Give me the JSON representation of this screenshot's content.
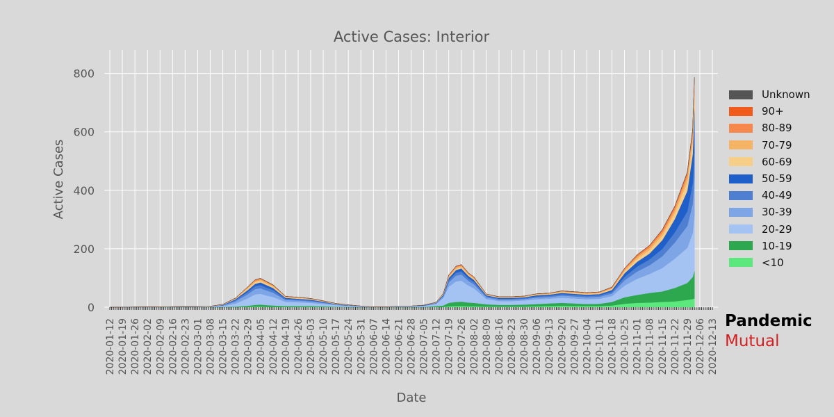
{
  "chart_data": {
    "type": "area",
    "stacked": true,
    "title": "Active Cases: Interior",
    "xlabel": "Date",
    "ylabel": "Active Cases",
    "ylim": [
      0,
      880
    ],
    "yticks": [
      0,
      200,
      400,
      600,
      800
    ],
    "grid": true,
    "legend_position": "right",
    "xticks": [
      "2020-01-12",
      "2020-01-19",
      "2020-01-26",
      "2020-02-02",
      "2020-02-09",
      "2020-02-16",
      "2020-02-23",
      "2020-03-01",
      "2020-03-08",
      "2020-03-15",
      "2020-03-22",
      "2020-03-29",
      "2020-04-05",
      "2020-04-12",
      "2020-04-19",
      "2020-04-26",
      "2020-05-03",
      "2020-05-10",
      "2020-05-17",
      "2020-05-24",
      "2020-05-31",
      "2020-06-07",
      "2020-06-14",
      "2020-06-21",
      "2020-06-28",
      "2020-07-05",
      "2020-07-12",
      "2020-07-19",
      "2020-07-26",
      "2020-08-02",
      "2020-08-09",
      "2020-08-16",
      "2020-08-23",
      "2020-08-30",
      "2020-09-06",
      "2020-09-13",
      "2020-09-20",
      "2020-09-27",
      "2020-10-04",
      "2020-10-11",
      "2020-10-18",
      "2020-10-25",
      "2020-11-01",
      "2020-11-08",
      "2020-11-15",
      "2020-11-22",
      "2020-11-29",
      "2020-12-06",
      "2020-12-13"
    ],
    "x": [
      "2020-01-12",
      "2020-03-08",
      "2020-03-15",
      "2020-03-22",
      "2020-03-29",
      "2020-04-02",
      "2020-04-05",
      "2020-04-09",
      "2020-04-12",
      "2020-04-19",
      "2020-04-26",
      "2020-05-03",
      "2020-05-10",
      "2020-05-17",
      "2020-05-24",
      "2020-05-31",
      "2020-06-07",
      "2020-06-14",
      "2020-06-21",
      "2020-06-28",
      "2020-07-05",
      "2020-07-12",
      "2020-07-16",
      "2020-07-19",
      "2020-07-23",
      "2020-07-26",
      "2020-07-30",
      "2020-08-02",
      "2020-08-09",
      "2020-08-16",
      "2020-08-23",
      "2020-08-30",
      "2020-09-06",
      "2020-09-13",
      "2020-09-20",
      "2020-09-27",
      "2020-10-04",
      "2020-10-11",
      "2020-10-18",
      "2020-10-25",
      "2020-11-01",
      "2020-11-08",
      "2020-11-15",
      "2020-11-22",
      "2020-11-29",
      "2020-12-02",
      "2020-12-03"
    ],
    "series": [
      {
        "name": "<10",
        "color": "#5de87e",
        "values": [
          0,
          0,
          0,
          0,
          1,
          2,
          2,
          1,
          1,
          1,
          1,
          1,
          1,
          1,
          0,
          0,
          0,
          0,
          0,
          0,
          0,
          1,
          1,
          3,
          4,
          4,
          3,
          3,
          2,
          2,
          2,
          2,
          3,
          4,
          5,
          4,
          4,
          4,
          6,
          12,
          15,
          16,
          18,
          20,
          25,
          28,
          30
        ]
      },
      {
        "name": "10-19",
        "color": "#2ea84e",
        "values": [
          0,
          0,
          1,
          2,
          4,
          6,
          7,
          6,
          5,
          3,
          3,
          3,
          2,
          1,
          1,
          1,
          0,
          0,
          1,
          1,
          1,
          3,
          5,
          12,
          14,
          15,
          13,
          12,
          8,
          6,
          6,
          7,
          8,
          9,
          10,
          9,
          7,
          8,
          12,
          22,
          27,
          33,
          36,
          46,
          58,
          75,
          95
        ]
      },
      {
        "name": "20-29",
        "color": "#a4c3f3",
        "values": [
          0,
          1,
          3,
          10,
          26,
          36,
          37,
          32,
          29,
          14,
          13,
          11,
          8,
          5,
          3,
          2,
          1,
          1,
          2,
          2,
          3,
          7,
          26,
          55,
          70,
          72,
          58,
          50,
          18,
          13,
          13,
          14,
          16,
          16,
          17,
          17,
          16,
          17,
          20,
          40,
          55,
          65,
          80,
          100,
          120,
          150,
          190
        ]
      },
      {
        "name": "30-39",
        "color": "#7ea5e6",
        "values": [
          0,
          1,
          2,
          8,
          14,
          18,
          19,
          17,
          15,
          7,
          6,
          5,
          4,
          2,
          1,
          1,
          0,
          0,
          1,
          1,
          1,
          2,
          5,
          15,
          20,
          21,
          16,
          14,
          6,
          5,
          5,
          5,
          6,
          6,
          8,
          7,
          7,
          7,
          9,
          18,
          25,
          30,
          40,
          55,
          75,
          100,
          130
        ]
      },
      {
        "name": "40-49",
        "color": "#4e7fd0",
        "values": [
          0,
          0,
          1,
          4,
          8,
          10,
          11,
          10,
          9,
          4,
          3,
          3,
          2,
          1,
          1,
          0,
          0,
          0,
          0,
          0,
          1,
          1,
          3,
          8,
          10,
          11,
          9,
          8,
          4,
          3,
          3,
          3,
          4,
          4,
          5,
          5,
          5,
          5,
          6,
          12,
          17,
          20,
          25,
          35,
          50,
          70,
          90
        ]
      },
      {
        "name": "50-59",
        "color": "#1f5fca",
        "values": [
          0,
          0,
          1,
          3,
          6,
          8,
          9,
          8,
          7,
          3,
          3,
          3,
          2,
          1,
          1,
          0,
          0,
          0,
          0,
          0,
          1,
          1,
          3,
          7,
          9,
          10,
          8,
          7,
          3,
          3,
          3,
          3,
          4,
          4,
          4,
          4,
          4,
          4,
          6,
          12,
          16,
          20,
          30,
          45,
          70,
          100,
          145
        ]
      },
      {
        "name": "60-69",
        "color": "#f7ce87",
        "values": [
          0,
          1,
          1,
          2,
          5,
          6,
          6,
          5,
          5,
          2,
          2,
          2,
          1,
          1,
          1,
          0,
          0,
          0,
          0,
          0,
          0,
          1,
          2,
          4,
          5,
          5,
          4,
          4,
          2,
          2,
          2,
          2,
          2,
          2,
          3,
          3,
          3,
          3,
          4,
          7,
          10,
          12,
          15,
          20,
          30,
          38,
          48
        ]
      },
      {
        "name": "70-79",
        "color": "#f5b366",
        "values": [
          0,
          0,
          1,
          1,
          4,
          4,
          4,
          4,
          3,
          2,
          2,
          1,
          1,
          1,
          0,
          0,
          0,
          0,
          0,
          0,
          0,
          1,
          1,
          3,
          4,
          4,
          3,
          3,
          1,
          1,
          1,
          1,
          2,
          2,
          2,
          2,
          2,
          2,
          3,
          5,
          7,
          8,
          10,
          12,
          18,
          25,
          33
        ]
      },
      {
        "name": "80-89",
        "color": "#f5894d",
        "values": [
          0,
          0,
          0,
          1,
          2,
          3,
          3,
          2,
          2,
          1,
          1,
          1,
          1,
          0,
          0,
          0,
          0,
          0,
          0,
          0,
          0,
          0,
          1,
          2,
          3,
          3,
          2,
          2,
          1,
          1,
          1,
          1,
          1,
          1,
          2,
          2,
          2,
          2,
          2,
          4,
          5,
          6,
          8,
          9,
          12,
          16,
          20
        ]
      },
      {
        "name": "90+",
        "color": "#f05b1c",
        "values": [
          0,
          0,
          0,
          0,
          0,
          1,
          1,
          1,
          1,
          0,
          0,
          0,
          0,
          0,
          0,
          0,
          0,
          0,
          0,
          0,
          0,
          0,
          0,
          1,
          1,
          1,
          1,
          1,
          0,
          0,
          0,
          0,
          0,
          0,
          0,
          0,
          0,
          0,
          1,
          1,
          2,
          2,
          3,
          3,
          4,
          5,
          6
        ]
      },
      {
        "name": "Unknown",
        "color": "#555555",
        "values": [
          0,
          0,
          0,
          0,
          0,
          0,
          0,
          0,
          0,
          0,
          0,
          0,
          0,
          0,
          0,
          0,
          0,
          0,
          0,
          0,
          0,
          0,
          0,
          0,
          0,
          0,
          0,
          0,
          0,
          0,
          0,
          0,
          0,
          0,
          0,
          0,
          0,
          0,
          0,
          0,
          0,
          0,
          0,
          0,
          0,
          0,
          0
        ]
      }
    ]
  },
  "legend_title_order": [
    "Unknown",
    "90+",
    "80-89",
    "70-79",
    "60-69",
    "50-59",
    "40-49",
    "30-39",
    "20-29",
    "10-19",
    "<10"
  ],
  "brand": {
    "line1": "Pandemic",
    "line2": "Mutual"
  }
}
